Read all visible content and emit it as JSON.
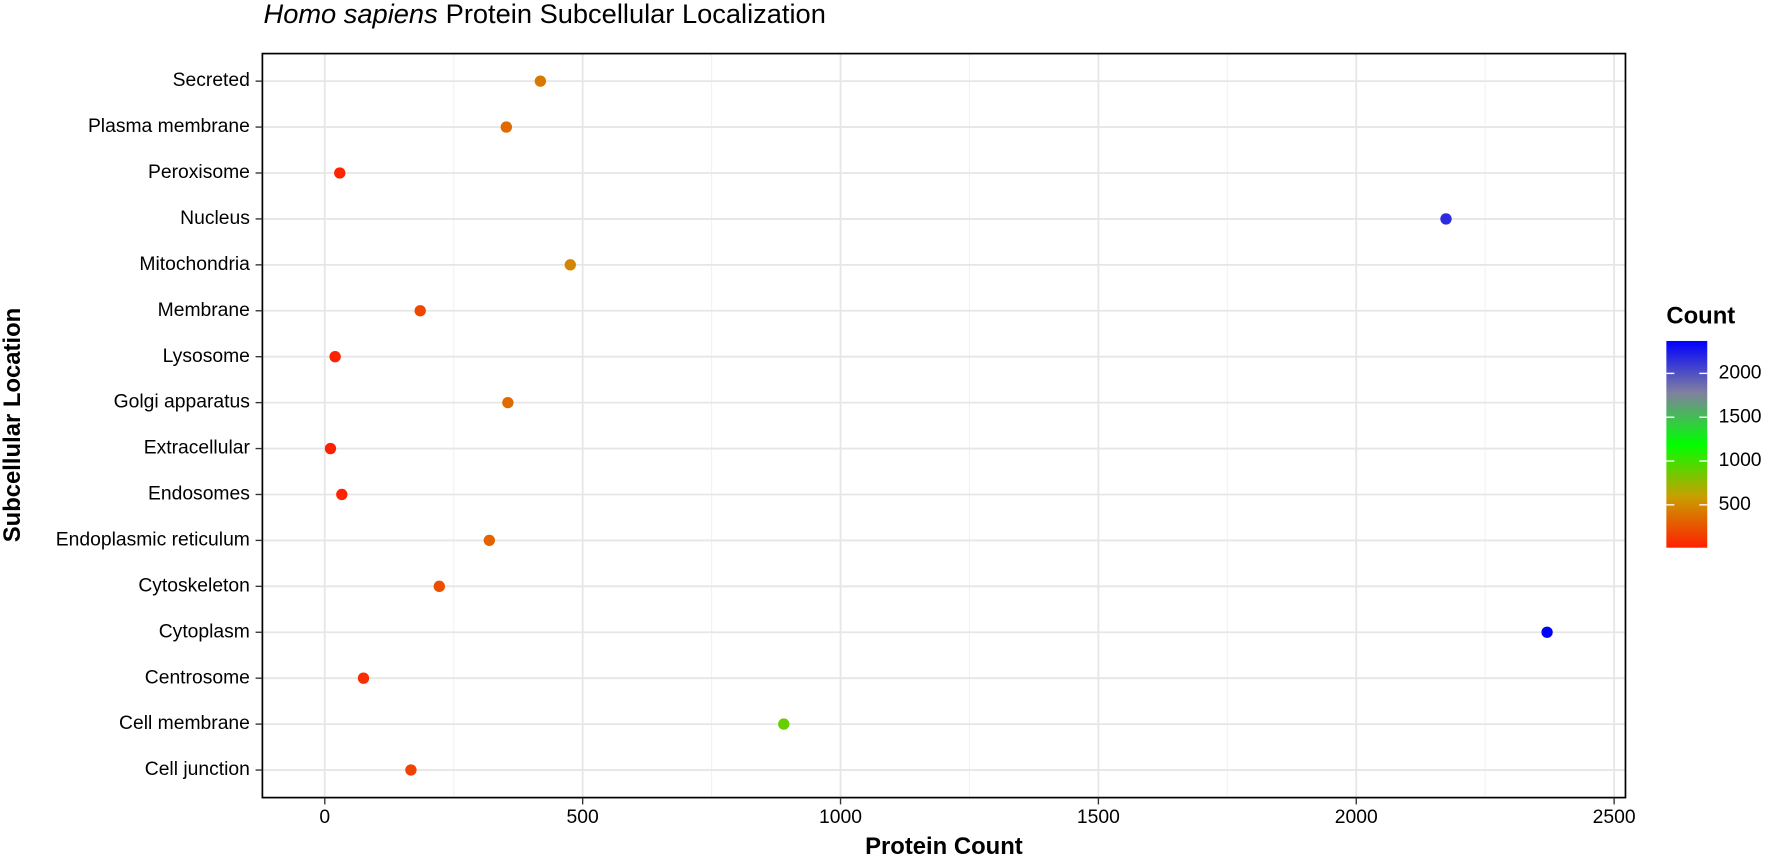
{
  "chart_data": {
    "type": "scatter",
    "title": {
      "italic": "Homo sapiens",
      "text": "Protein Subcellular Localization"
    },
    "x_label": "Protein Count",
    "y_label": "Subcellular Location",
    "categories": [
      "Cell junction",
      "Cell membrane",
      "Centrosome",
      "Cytoplasm",
      "Cytoskeleton",
      "Endoplasmic reticulum",
      "Endosomes",
      "Extracellular",
      "Golgi apparatus",
      "Lysosome",
      "Membrane",
      "Mitochondria",
      "Nucleus",
      "Peroxisome",
      "Plasma membrane",
      "Secreted"
    ],
    "values": [
      167,
      890,
      75,
      2370,
      222,
      319,
      33,
      11,
      355,
      20,
      185,
      476,
      2174,
      29,
      352,
      418
    ],
    "xlim": [
      -121,
      2522
    ],
    "xticks": [
      0,
      500,
      1000,
      1500,
      2000,
      2500
    ],
    "grid": true,
    "color_scale": {
      "name": "Count",
      "lim": [
        11,
        2370
      ],
      "ticks": [
        500,
        1000,
        1500,
        2000
      ],
      "colors": [
        "#ff2000",
        "#c8a000",
        "#00ff00",
        "#8080a0",
        "#0000ff"
      ]
    }
  }
}
